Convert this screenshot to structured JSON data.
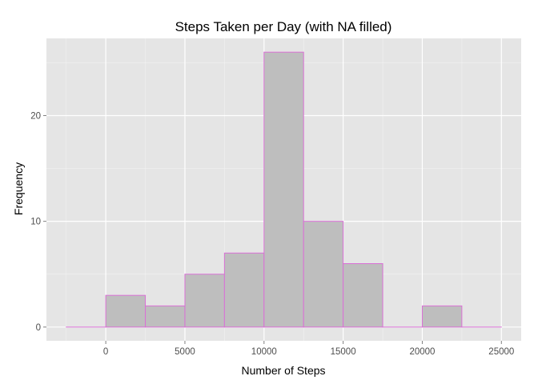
{
  "chart_data": {
    "type": "bar",
    "title": "Steps Taken per Day (with NA filled)",
    "xlabel": "Number of Steps",
    "ylabel": "Frequency",
    "bin_width": 2500,
    "bins": [
      {
        "start": -2500,
        "end": 0,
        "count": 0
      },
      {
        "start": 0,
        "end": 2500,
        "count": 3
      },
      {
        "start": 2500,
        "end": 5000,
        "count": 2
      },
      {
        "start": 5000,
        "end": 7500,
        "count": 5
      },
      {
        "start": 7500,
        "end": 10000,
        "count": 7
      },
      {
        "start": 10000,
        "end": 12500,
        "count": 26
      },
      {
        "start": 12500,
        "end": 15000,
        "count": 10
      },
      {
        "start": 15000,
        "end": 17500,
        "count": 6
      },
      {
        "start": 17500,
        "end": 20000,
        "count": 0
      },
      {
        "start": 20000,
        "end": 22500,
        "count": 2
      },
      {
        "start": 22500,
        "end": 25000,
        "count": 0
      }
    ],
    "xlim": [
      -3750,
      26250
    ],
    "ylim": [
      -1.3,
      27.3
    ],
    "x_ticks": [
      0,
      5000,
      10000,
      15000,
      20000,
      25000
    ],
    "x_tick_labels": [
      "0",
      "5000",
      "10000",
      "15000",
      "20000",
      "25000"
    ],
    "y_ticks": [
      0,
      10,
      20
    ],
    "y_tick_labels": [
      "0",
      "10",
      "20"
    ],
    "grid": true,
    "colors": {
      "panel": "#e5e5e5",
      "grid_major": "#ffffff",
      "grid_minor": "#f2f2f2",
      "bar_fill": "#bebebe",
      "bar_outline": "#da70d6",
      "tick": "#7f7f7f"
    }
  }
}
